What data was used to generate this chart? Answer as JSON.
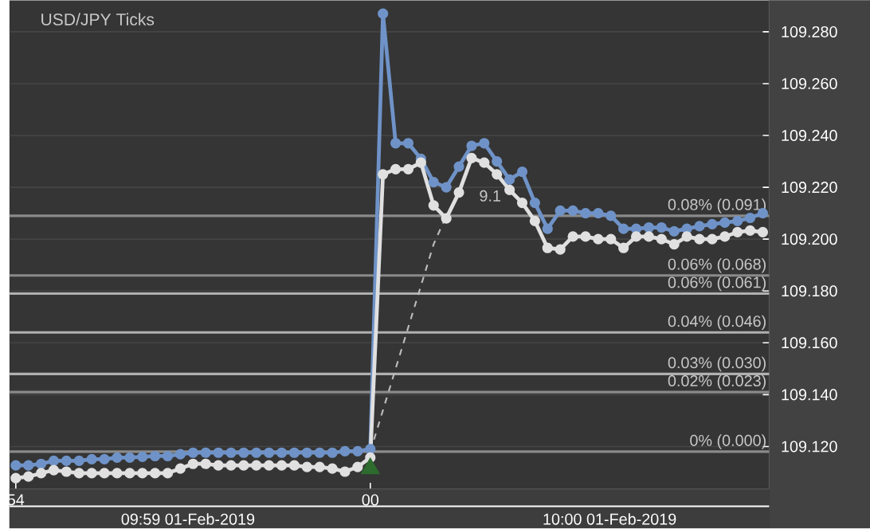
{
  "chart_data": {
    "type": "line",
    "title": "USD/JPY Ticks",
    "categories": [
      "54",
      null,
      null,
      null,
      null,
      null,
      null,
      null,
      null,
      null,
      null,
      null,
      null,
      null,
      null,
      null,
      null,
      null,
      null,
      null,
      null,
      null,
      null,
      null,
      null,
      null,
      null,
      null,
      "00",
      null,
      null,
      null,
      null,
      null,
      null,
      null,
      null,
      null,
      null,
      null,
      null,
      null,
      null,
      null,
      null,
      null,
      null,
      null,
      null,
      null,
      null,
      null,
      null,
      null,
      null,
      null,
      null,
      null,
      null,
      null
    ],
    "series": [
      {
        "color": "#6f93c8",
        "marker": "circle",
        "values": [
          109.1127,
          109.1127,
          109.1133,
          109.1145,
          109.1145,
          109.1145,
          109.1151,
          109.1151,
          109.1157,
          109.1157,
          109.116,
          109.1163,
          109.1163,
          109.117,
          109.1176,
          109.1176,
          109.1176,
          109.1176,
          109.1176,
          109.1176,
          109.1176,
          109.1176,
          109.1176,
          109.1176,
          109.1176,
          109.1176,
          109.1182,
          109.1182,
          109.119,
          109.287,
          109.237,
          109.237,
          109.231,
          109.222,
          109.22,
          109.228,
          109.236,
          109.237,
          109.23,
          109.223,
          109.226,
          109.214,
          109.204,
          109.211,
          109.211,
          109.21,
          109.21,
          109.209,
          109.204,
          109.204,
          109.2045,
          109.2045,
          109.203,
          109.204,
          109.205,
          109.2058,
          109.2064,
          109.207,
          109.2082,
          109.21
        ]
      },
      {
        "color": "#e0e0e0",
        "marker": "circle",
        "values": [
          109.1078,
          109.1084,
          109.1097,
          109.1109,
          109.1103,
          109.1097,
          109.1097,
          109.1097,
          109.1097,
          109.1097,
          109.1097,
          109.1097,
          109.1097,
          109.1115,
          109.1133,
          109.1133,
          109.1127,
          109.1127,
          109.1127,
          109.1127,
          109.1127,
          109.1127,
          109.1127,
          109.1121,
          109.1121,
          109.1115,
          109.1103,
          109.1121,
          109.1157,
          109.225,
          109.227,
          109.227,
          109.2295,
          109.213,
          109.208,
          109.218,
          109.2313,
          109.2295,
          109.225,
          109.219,
          109.214,
          109.207,
          109.1966,
          109.196,
          109.201,
          109.201,
          109.2,
          109.2,
          109.1966,
          109.201,
          109.201,
          109.2,
          109.198,
          109.201,
          109.2,
          109.2,
          109.201,
          109.2027,
          109.2033,
          109.2027
        ]
      },
      {
        "color": "#bdbdbd",
        "marker": "none",
        "line_style": "dashed",
        "values": [
          null,
          null,
          null,
          null,
          null,
          null,
          null,
          null,
          null,
          null,
          null,
          null,
          null,
          null,
          null,
          null,
          null,
          null,
          null,
          null,
          null,
          null,
          null,
          null,
          null,
          null,
          null,
          null,
          109.118,
          109.134,
          109.15,
          109.166,
          109.182,
          109.198,
          109.209,
          null,
          null,
          null,
          null,
          null,
          null,
          null,
          null,
          null,
          null,
          null,
          null,
          null,
          null,
          null,
          null,
          null,
          null,
          null,
          null,
          null,
          null,
          null,
          null,
          null
        ]
      },
      {
        "type": "scatter",
        "color": "#2e6b2e",
        "marker": "triangle",
        "values": [
          null,
          null,
          null,
          null,
          null,
          null,
          null,
          null,
          null,
          null,
          null,
          null,
          null,
          null,
          null,
          null,
          null,
          null,
          null,
          null,
          null,
          null,
          null,
          null,
          null,
          null,
          null,
          null,
          109.1115,
          null,
          null,
          null,
          null,
          null,
          null,
          null,
          null,
          null,
          null,
          null,
          null,
          null,
          null,
          null,
          null,
          null,
          null,
          null,
          null,
          null,
          null,
          null,
          null,
          null,
          null,
          null,
          null,
          null,
          null,
          null
        ]
      }
    ],
    "ylim": [
      109.1036,
      109.2921
    ],
    "yticks": [
      {
        "value": 109.12,
        "label": "109.120"
      },
      {
        "value": 109.14,
        "label": "109.140"
      },
      {
        "value": 109.16,
        "label": "109.160"
      },
      {
        "value": 109.18,
        "label": "109.180"
      },
      {
        "value": 109.2,
        "label": "109.200"
      },
      {
        "value": 109.22,
        "label": "109.220"
      },
      {
        "value": 109.24,
        "label": "109.240"
      },
      {
        "value": 109.26,
        "label": "109.260"
      },
      {
        "value": 109.28,
        "label": "109.280"
      }
    ],
    "grid": "y",
    "ref_lines": [
      {
        "axis": "y",
        "value": 109.118,
        "color": "#8a8a8a"
      },
      {
        "axis": "y",
        "value": 109.141,
        "color": "#8a8a8a"
      },
      {
        "axis": "y",
        "value": 109.148,
        "color": "#b0b0b0"
      },
      {
        "axis": "y",
        "value": 109.164,
        "color": "#b0b0b0"
      },
      {
        "axis": "y",
        "value": 109.179,
        "color": "#b0b0b0"
      },
      {
        "axis": "y",
        "value": 109.186,
        "color": "#8a8a8a"
      },
      {
        "axis": "y",
        "value": 109.209,
        "color": "#8a8a8a"
      }
    ],
    "annotations": [
      {
        "text": "0% (0.000)",
        "y": 109.118
      },
      {
        "text": "0.02% (0.023)",
        "y": 109.141
      },
      {
        "text": "0.03% (0.030)",
        "y": 109.148
      },
      {
        "text": "0.04% (0.046)",
        "y": 109.164
      },
      {
        "text": "0.06% (0.061)",
        "y": 109.179
      },
      {
        "text": "0.06% (0.068)",
        "y": 109.186
      },
      {
        "text": "0.08% (0.091)",
        "y": 109.209
      },
      "9.1",
      "09:59 01-Feb-2019",
      "10:00 01-Feb-2019"
    ]
  }
}
